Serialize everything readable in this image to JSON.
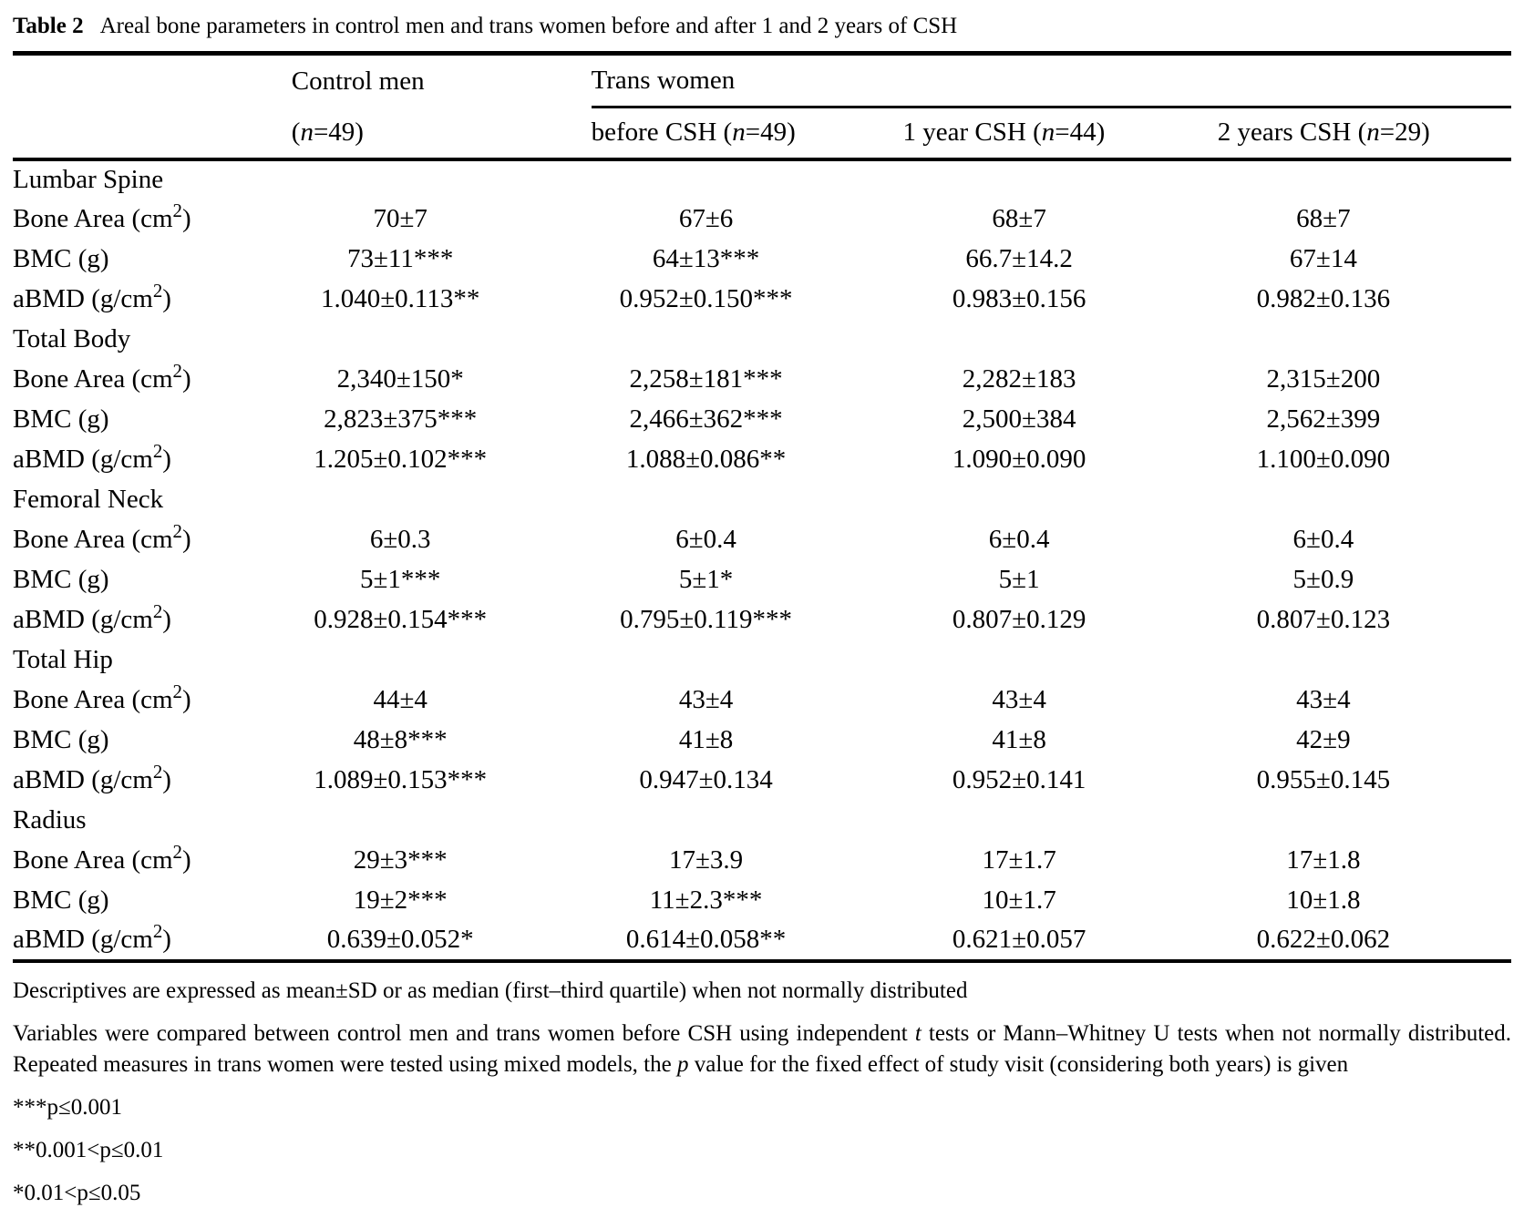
{
  "title": {
    "label": "Table 2",
    "text": "Areal bone parameters in control men and trans women before and after 1 and 2 years of CSH"
  },
  "header": {
    "control_group": "Control men",
    "trans_group": "Trans women",
    "columns": [
      {
        "parts": [
          {
            "t": "("
          },
          {
            "t": "n",
            "i": true
          },
          {
            "t": "=49)"
          }
        ]
      },
      {
        "parts": [
          {
            "t": "before CSH ("
          },
          {
            "t": "n",
            "i": true
          },
          {
            "t": "=49)"
          }
        ]
      },
      {
        "parts": [
          {
            "t": "1 year CSH ("
          },
          {
            "t": "n",
            "i": true
          },
          {
            "t": "=44)"
          }
        ]
      },
      {
        "parts": [
          {
            "t": "2 years CSH ("
          },
          {
            "t": "n",
            "i": true
          },
          {
            "t": "=29)"
          }
        ]
      }
    ]
  },
  "sections": [
    {
      "name": "Lumbar Spine",
      "rows": [
        {
          "label": {
            "pre": "Bone Area (cm",
            "sup": "2",
            "post": ")"
          },
          "values": [
            "70±7",
            "67±6",
            "68±7",
            "68±7"
          ]
        },
        {
          "label": {
            "pre": "BMC (g)",
            "sup": "",
            "post": ""
          },
          "values": [
            "73±11***",
            "64±13***",
            "66.7±14.2",
            "67±14"
          ]
        },
        {
          "label": {
            "pre": "aBMD (g/cm",
            "sup": "2",
            "post": ")"
          },
          "values": [
            "1.040±0.113**",
            "0.952±0.150***",
            "0.983±0.156",
            "0.982±0.136"
          ]
        }
      ]
    },
    {
      "name": "Total Body",
      "rows": [
        {
          "label": {
            "pre": "Bone Area (cm",
            "sup": "2",
            "post": ")"
          },
          "values": [
            "2,340±150*",
            "2,258±181***",
            "2,282±183",
            "2,315±200"
          ]
        },
        {
          "label": {
            "pre": "BMC (g)",
            "sup": "",
            "post": ""
          },
          "values": [
            "2,823±375***",
            "2,466±362***",
            "2,500±384",
            "2,562±399"
          ]
        },
        {
          "label": {
            "pre": "aBMD (g/cm",
            "sup": "2",
            "post": ")"
          },
          "values": [
            "1.205±0.102***",
            "1.088±0.086**",
            "1.090±0.090",
            "1.100±0.090"
          ]
        }
      ]
    },
    {
      "name": "Femoral Neck",
      "rows": [
        {
          "label": {
            "pre": "Bone Area (cm",
            "sup": "2",
            "post": ")"
          },
          "values": [
            "6±0.3",
            "6±0.4",
            "6±0.4",
            "6±0.4"
          ]
        },
        {
          "label": {
            "pre": "BMC (g)",
            "sup": "",
            "post": ""
          },
          "values": [
            "5±1***",
            "5±1*",
            "5±1",
            "5±0.9"
          ]
        },
        {
          "label": {
            "pre": "aBMD (g/cm",
            "sup": "2",
            "post": ")"
          },
          "values": [
            "0.928±0.154***",
            "0.795±0.119***",
            "0.807±0.129",
            "0.807±0.123"
          ]
        }
      ]
    },
    {
      "name": "Total Hip",
      "rows": [
        {
          "label": {
            "pre": "Bone Area (cm",
            "sup": "2",
            "post": ")"
          },
          "values": [
            "44±4",
            "43±4",
            "43±4",
            "43±4"
          ]
        },
        {
          "label": {
            "pre": "BMC (g)",
            "sup": "",
            "post": ""
          },
          "values": [
            "48±8***",
            "41±8",
            "41±8",
            "42±9"
          ]
        },
        {
          "label": {
            "pre": "aBMD (g/cm",
            "sup": "2",
            "post": ")"
          },
          "values": [
            "1.089±0.153***",
            "0.947±0.134",
            "0.952±0.141",
            "0.955±0.145"
          ]
        }
      ]
    },
    {
      "name": "Radius",
      "rows": [
        {
          "label": {
            "pre": "Bone Area (cm",
            "sup": "2",
            "post": ")"
          },
          "values": [
            "29±3***",
            "17±3.9",
            "17±1.7",
            "17±1.8"
          ]
        },
        {
          "label": {
            "pre": "BMC (g)",
            "sup": "",
            "post": ""
          },
          "values": [
            "19±2***",
            "11±2.3***",
            "10±1.7",
            "10±1.8"
          ]
        },
        {
          "label": {
            "pre": "aBMD (g/cm",
            "sup": "2",
            "post": ")"
          },
          "values": [
            "0.639±0.052*",
            "0.614±0.058**",
            "0.621±0.057",
            "0.622±0.062"
          ]
        }
      ]
    }
  ],
  "footnotes": {
    "descriptives": "Descriptives are expressed as mean±SD or as median (first–third quartile) when not normally distributed",
    "methods_parts": [
      {
        "t": "Variables were compared between control men and trans women before CSH using independent "
      },
      {
        "t": "t",
        "i": true
      },
      {
        "t": " tests or Mann–Whitney U tests when not normally distributed. Repeated measures in trans women were tested using mixed models, the "
      },
      {
        "t": "p",
        "i": true
      },
      {
        "t": " value for the fixed effect of study visit (considering both years) is given"
      }
    ],
    "significance": [
      "***p≤0.001",
      "**0.001<p≤0.01",
      "*0.01<p≤0.05"
    ]
  }
}
